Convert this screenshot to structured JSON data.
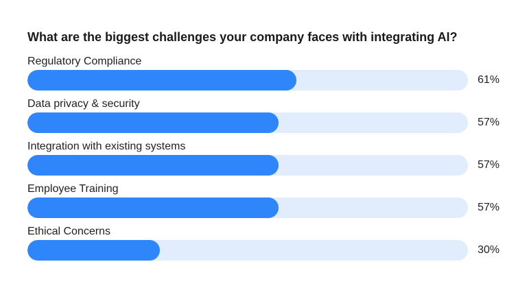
{
  "chart_data": {
    "type": "bar",
    "orientation": "horizontal",
    "title": "What are the biggest challenges your company faces with integrating AI?",
    "categories": [
      "Regulatory Compliance",
      "Data privacy & security",
      "Integration with existing systems",
      "Employee Training",
      "Ethical Concerns"
    ],
    "values": [
      61,
      57,
      57,
      57,
      30
    ],
    "value_labels": [
      "61%",
      "57%",
      "57%",
      "57%",
      "30%"
    ],
    "unit": "%",
    "xlim": [
      0,
      100
    ],
    "grid": false,
    "legend": "none",
    "colors": {
      "bar": "#2f86fb",
      "track": "#e1edfd",
      "text": "#1f1f1f"
    }
  }
}
